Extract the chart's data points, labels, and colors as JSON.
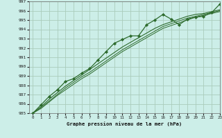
{
  "title": "Graphe pression niveau de la mer (hPa)",
  "bg_color": "#cceee8",
  "grid_color": "#aaccbb",
  "line_color": "#2d6b2d",
  "marker_color": "#2d6b2d",
  "xlim": [
    -0.5,
    23
  ],
  "ylim": [
    985,
    997
  ],
  "xticks": [
    0,
    1,
    2,
    3,
    4,
    5,
    6,
    7,
    8,
    9,
    10,
    11,
    12,
    13,
    14,
    15,
    16,
    17,
    18,
    19,
    20,
    21,
    22,
    23
  ],
  "yticks": [
    985,
    986,
    987,
    988,
    989,
    990,
    991,
    992,
    993,
    994,
    995,
    996,
    997
  ],
  "series_main": [
    985.0,
    985.9,
    986.8,
    987.5,
    988.4,
    988.7,
    989.3,
    989.8,
    990.7,
    991.6,
    992.5,
    992.9,
    993.3,
    993.3,
    994.5,
    995.0,
    995.6,
    995.1,
    994.5,
    995.1,
    995.3,
    995.4,
    995.8,
    996.7
  ],
  "series_line1": [
    985.0,
    985.7,
    986.5,
    987.2,
    987.9,
    988.5,
    989.1,
    989.7,
    990.3,
    990.9,
    991.5,
    992.1,
    992.6,
    993.1,
    993.6,
    994.1,
    994.5,
    994.8,
    995.1,
    995.4,
    995.6,
    995.7,
    995.9,
    996.1
  ],
  "series_line2": [
    985.0,
    985.6,
    986.3,
    987.0,
    987.7,
    988.3,
    988.9,
    989.4,
    990.0,
    990.6,
    991.2,
    991.8,
    992.3,
    992.8,
    993.3,
    993.8,
    994.3,
    994.6,
    994.9,
    995.2,
    995.4,
    995.6,
    995.8,
    996.0
  ],
  "series_line3": [
    985.0,
    985.5,
    986.2,
    986.9,
    987.5,
    988.1,
    988.7,
    989.2,
    989.8,
    990.4,
    991.0,
    991.6,
    992.1,
    992.6,
    993.1,
    993.6,
    994.1,
    994.4,
    994.7,
    995.0,
    995.3,
    995.5,
    995.7,
    995.9
  ]
}
